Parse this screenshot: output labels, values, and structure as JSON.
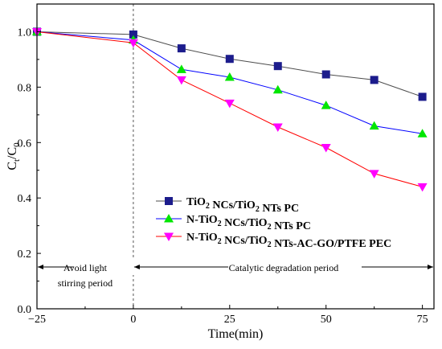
{
  "chart_data": {
    "type": "line",
    "xlabel": "Time(min)",
    "ylabel_main": "C",
    "ylabel_sub_t": "t",
    "ylabel_sub_0": "0",
    "xlim": [
      -25,
      78
    ],
    "ylim": [
      0.0,
      1.1
    ],
    "xticks": [
      -25,
      0,
      25,
      50,
      75
    ],
    "xtick_labels": [
      "−25",
      "0",
      "25",
      "50",
      "75"
    ],
    "yticks": [
      0.0,
      0.2,
      0.4,
      0.6,
      0.8,
      1.0
    ],
    "ytick_labels": [
      "0.0",
      "0.2",
      "0.4",
      "0.6",
      "0.8",
      "1.0"
    ],
    "grid": false,
    "legend_placement": "lower-right",
    "series": [
      {
        "legend_parts": [
          [
            "TiO",
            ""
          ],
          [
            "2",
            "sub"
          ],
          [
            " NCs/TiO",
            ""
          ],
          [
            "2",
            "sub"
          ],
          [
            " NTs PC",
            ""
          ]
        ],
        "color": "#4d4d4d",
        "marker_color": "#1c1c8c",
        "marker": "square",
        "x": [
          -25,
          0,
          12.5,
          25,
          37.5,
          50,
          62.5,
          75
        ],
        "y": [
          1.0,
          0.99,
          0.94,
          0.902,
          0.876,
          0.846,
          0.826,
          0.765
        ]
      },
      {
        "legend_parts": [
          [
            "N-TiO",
            ""
          ],
          [
            "2",
            "sub"
          ],
          [
            " NCs/TiO",
            ""
          ],
          [
            "2",
            "sub"
          ],
          [
            " NTs PC",
            ""
          ]
        ],
        "color": "#0000ff",
        "marker_color": "#00e600",
        "marker": "triangle-up",
        "x": [
          -25,
          0,
          12.5,
          25,
          37.5,
          50,
          62.5,
          75
        ],
        "y": [
          1.0,
          0.97,
          0.864,
          0.836,
          0.79,
          0.734,
          0.66,
          0.632
        ]
      },
      {
        "legend_parts": [
          [
            "N-TiO",
            ""
          ],
          [
            "2",
            "sub"
          ],
          [
            " NCs/TiO",
            ""
          ],
          [
            "2",
            "sub"
          ],
          [
            " NTs-AC-GO/PTFE PEC",
            ""
          ]
        ],
        "color": "#ff0000",
        "marker_color": "#ff00ff",
        "marker": "triangle-down",
        "x": [
          -25,
          0,
          12.5,
          25,
          37.5,
          50,
          62.5,
          75
        ],
        "y": [
          1.0,
          0.96,
          0.826,
          0.742,
          0.656,
          0.582,
          0.488,
          0.44
        ]
      }
    ],
    "annotations": {
      "dark_period_line1": "Avoid light",
      "dark_period_line2": "stirring period",
      "reaction_period": "Catalytic degradation period"
    }
  }
}
